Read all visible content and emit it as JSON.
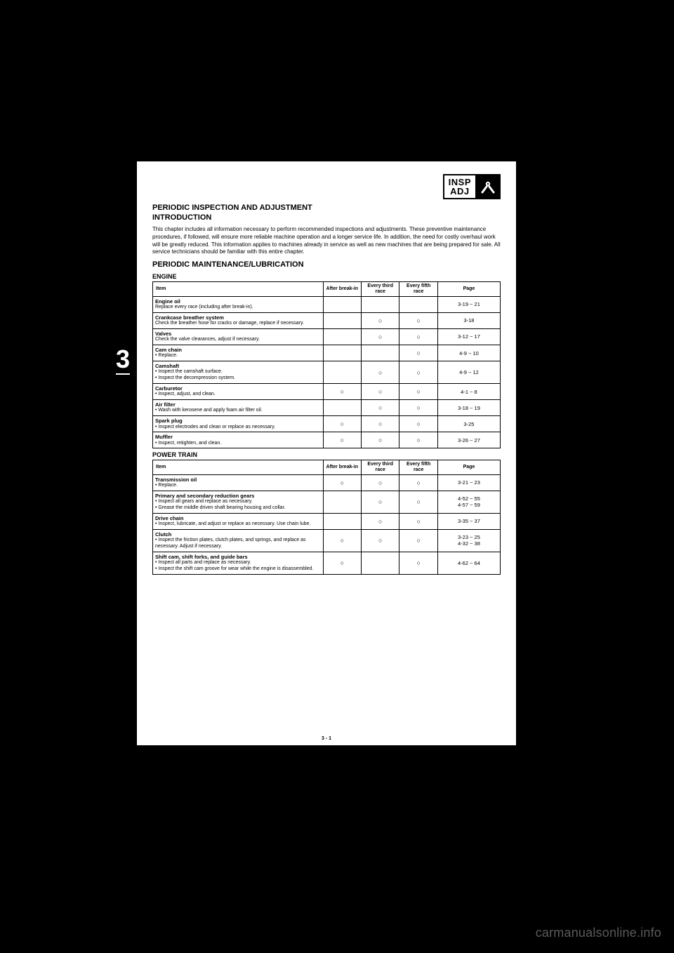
{
  "meta": {
    "page_number": "3 - 1",
    "watermark": "carmanualsonline.info",
    "chapter_tab": "3"
  },
  "badge": {
    "line1": "INSP",
    "line2": "ADJ"
  },
  "titles": {
    "section": "PERIODIC INSPECTION AND ADJUSTMENT",
    "subsection": "INTRODUCTION",
    "intro": "This chapter includes all information necessary to perform recommended inspections and adjustments. These preventive maintenance procedures, if followed, will ensure more reliable machine operation and a longer service life. In addition, the need for costly overhaul work will be greatly reduced. This information applies to machines already in service as well as new machines that are being prepared for sale. All service technicians should be familiar with this entire chapter.",
    "schedule_heading": "PERIODIC MAINTENANCE/LUBRICATION",
    "group_engine": "ENGINE",
    "group_power": "POWER TRAIN"
  },
  "columns": {
    "item": "Item",
    "after_breakin": "After break-in",
    "every_third": "Every third race",
    "every_fifth": "Every fifth race",
    "page": "Page"
  },
  "engine": {
    "rows": [
      {
        "label": "Engine oil",
        "sub": "Replace every race (including after break-in).",
        "checks": [
          "",
          "",
          ""
        ],
        "page": "3-19 ~ 21"
      },
      {
        "label": "Crankcase breather system",
        "sub": "Check the breather hose for cracks or damage, replace if necessary.",
        "checks": [
          "",
          "○",
          "○"
        ],
        "page": "3-18"
      },
      {
        "label": "Valves",
        "sub": "Check the valve clearances, adjust if necessary.",
        "checks": [
          "",
          "○",
          "○"
        ],
        "page": "3-12 ~ 17"
      },
      {
        "label": "Cam chain",
        "sub": "• Replace.",
        "checks": [
          "",
          "",
          "○"
        ],
        "page": "4-9 ~ 10"
      },
      {
        "label": "Camshaft",
        "sub": "• Inspect the camshaft surface.\n• Inspect the decompression system.",
        "checks": [
          "",
          "○",
          "○"
        ],
        "page": "4-9 ~ 12"
      },
      {
        "label": "Carburetor",
        "sub": "• Inspect, adjust, and clean.",
        "checks": [
          "○",
          "○",
          "○"
        ],
        "page": "4-1 ~ 8"
      },
      {
        "label": "Air filter",
        "sub": "• Wash with kerosene and apply foam air filter oil.",
        "checks": [
          "",
          "○",
          "○"
        ],
        "page": "3-18 ~ 19"
      },
      {
        "label": "Spark plug",
        "sub": "• Inspect electrodes and clean or replace as necessary.",
        "checks": [
          "○",
          "○",
          "○"
        ],
        "page": "3-25"
      },
      {
        "label": "Muffler",
        "sub": "• Inspect, retighten, and clean.",
        "checks": [
          "○",
          "○",
          "○"
        ],
        "page": "3-26 ~ 27"
      }
    ]
  },
  "power": {
    "rows": [
      {
        "label": "Transmission oil",
        "sub": "• Replace.",
        "checks": [
          "○",
          "○",
          "○"
        ],
        "page": "3-21 ~ 23"
      },
      {
        "label": "Primary and secondary reduction gears",
        "sub": "• Inspect all gears and replace as necessary.\n• Grease the middle driven shaft bearing housing and collar.",
        "checks": [
          "",
          "○",
          "○"
        ],
        "page": "4-52 ~ 55\n4-57 ~ 59"
      },
      {
        "label": "Drive chain",
        "sub": "• Inspect, lubricate, and adjust or replace as necessary. Use chain lube.",
        "checks": [
          "",
          "○",
          "○"
        ],
        "page": "3-35 ~ 37"
      },
      {
        "label": "Clutch",
        "sub": "• Inspect the friction plates, clutch plates, and springs, and replace as necessary. Adjust if necessary.",
        "checks": [
          "○",
          "○",
          "○"
        ],
        "page": "3-23 ~ 25\n4-32 ~ 38"
      },
      {
        "label": "Shift cam, shift forks, and guide bars",
        "sub": "• Inspect all parts and replace as necessary.\n• Inspect the shift cam groove for wear while the engine is disassembled.",
        "checks": [
          "○",
          "",
          "○"
        ],
        "page": "4-62 ~ 64"
      }
    ]
  }
}
